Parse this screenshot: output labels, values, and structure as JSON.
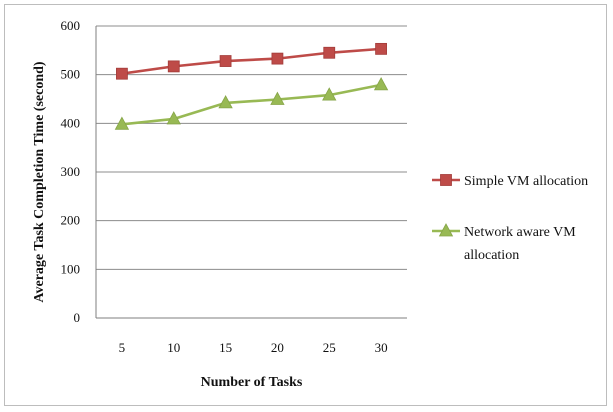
{
  "chart_data": {
    "type": "line",
    "title": "",
    "xlabel": "Number of Tasks",
    "ylabel": "Average Task Completion Time (second)",
    "x": [
      5,
      10,
      15,
      20,
      25,
      30
    ],
    "ylim": [
      0,
      600
    ],
    "yticks": [
      0,
      100,
      200,
      300,
      400,
      500,
      600
    ],
    "grid": "horizontal",
    "legend_position": "right",
    "series": [
      {
        "name": "Simple VM allocation",
        "values": [
          502,
          517,
          528,
          533,
          545,
          553
        ],
        "color": "#be4b48",
        "marker": "square"
      },
      {
        "name": "Network aware VM allocation",
        "legend_lines": [
          "Network aware VM",
          "allocation"
        ],
        "values": [
          398,
          409,
          442,
          449,
          458,
          479
        ],
        "color": "#98b954",
        "marker": "triangle"
      }
    ]
  }
}
